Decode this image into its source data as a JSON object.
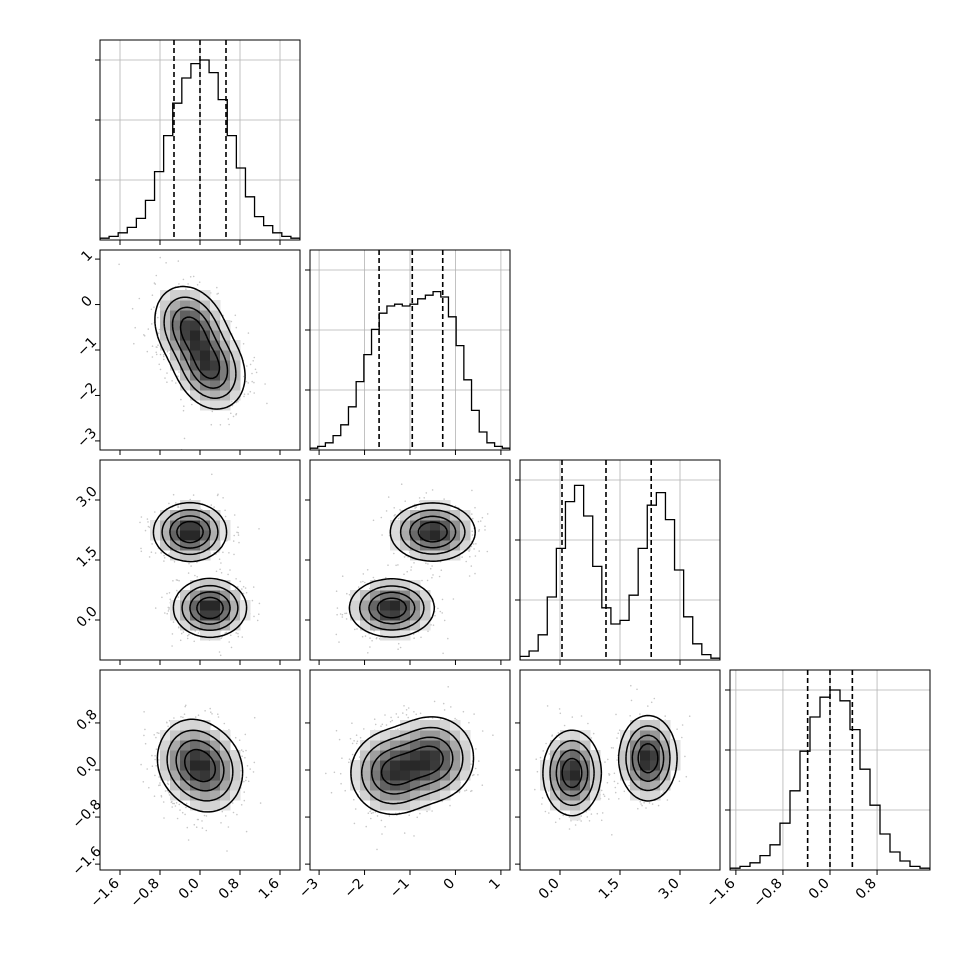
{
  "chart_data": {
    "type": "corner",
    "grid": true,
    "variables": [
      {
        "range": [
          -2.0,
          2.0
        ],
        "ticks": [
          -1.6,
          -0.8,
          0.0,
          0.8,
          1.6
        ],
        "tick_labels": [
          "−1.6",
          "−0.8",
          "0.0",
          "0.8",
          "1.6"
        ],
        "quantiles": [
          -0.52,
          0.0,
          0.52
        ],
        "hist": [
          0.01,
          0.02,
          0.04,
          0.07,
          0.12,
          0.22,
          0.38,
          0.58,
          0.76,
          0.9,
          0.98,
          1.0,
          0.93,
          0.78,
          0.58,
          0.4,
          0.24,
          0.13,
          0.08,
          0.04,
          0.02,
          0.01
        ]
      },
      {
        "range": [
          -3.2,
          1.2
        ],
        "ticks": [
          -3,
          -2,
          -1,
          0,
          1
        ],
        "tick_labels": [
          "−3",
          "−2",
          "−1",
          "0",
          "1"
        ],
        "quantiles": [
          -1.68,
          -0.95,
          -0.28
        ],
        "hist": [
          0.01,
          0.02,
          0.04,
          0.08,
          0.14,
          0.24,
          0.38,
          0.53,
          0.67,
          0.76,
          0.8,
          0.81,
          0.8,
          0.81,
          0.84,
          0.86,
          0.88,
          0.85,
          0.74,
          0.58,
          0.39,
          0.22,
          0.1,
          0.04,
          0.02,
          0.01
        ]
      },
      {
        "range": [
          -1.0,
          4.0
        ],
        "ticks": [
          0.0,
          1.5,
          3.0
        ],
        "tick_labels": [
          "0.0",
          "1.5",
          "3.0"
        ],
        "quantiles": [
          0.05,
          1.15,
          2.28
        ],
        "hist": [
          0.02,
          0.05,
          0.14,
          0.35,
          0.62,
          0.88,
          0.97,
          0.8,
          0.52,
          0.29,
          0.2,
          0.22,
          0.36,
          0.62,
          0.86,
          0.93,
          0.78,
          0.5,
          0.24,
          0.09,
          0.03,
          0.01
        ]
      },
      {
        "range": [
          -1.7,
          1.7
        ],
        "ticks": [
          -1.6,
          -0.8,
          0.0,
          0.8
        ],
        "tick_labels": [
          "−1.6",
          "−0.8",
          "0.0",
          "0.8"
        ],
        "quantiles": [
          -0.38,
          0.0,
          0.38
        ],
        "hist": [
          0.01,
          0.02,
          0.04,
          0.08,
          0.14,
          0.26,
          0.44,
          0.66,
          0.85,
          0.96,
          1.0,
          0.94,
          0.78,
          0.56,
          0.36,
          0.2,
          0.1,
          0.05,
          0.02,
          0.01
        ]
      }
    ],
    "components": [
      {
        "weight": 0.5,
        "mean": [
          -0.2,
          -0.5,
          2.2,
          0.2
        ],
        "sd": [
          0.35,
          0.45,
          0.35,
          0.35
        ],
        "corr": [
          [
            0,
            1,
            -0.2
          ]
        ]
      },
      {
        "weight": 0.5,
        "mean": [
          0.2,
          -1.4,
          0.3,
          -0.05
        ],
        "sd": [
          0.35,
          0.45,
          0.35,
          0.35
        ],
        "corr": [
          [
            0,
            1,
            -0.2
          ]
        ]
      }
    ],
    "contour_levels": [
      0.12,
      0.3,
      0.55,
      0.8
    ]
  }
}
